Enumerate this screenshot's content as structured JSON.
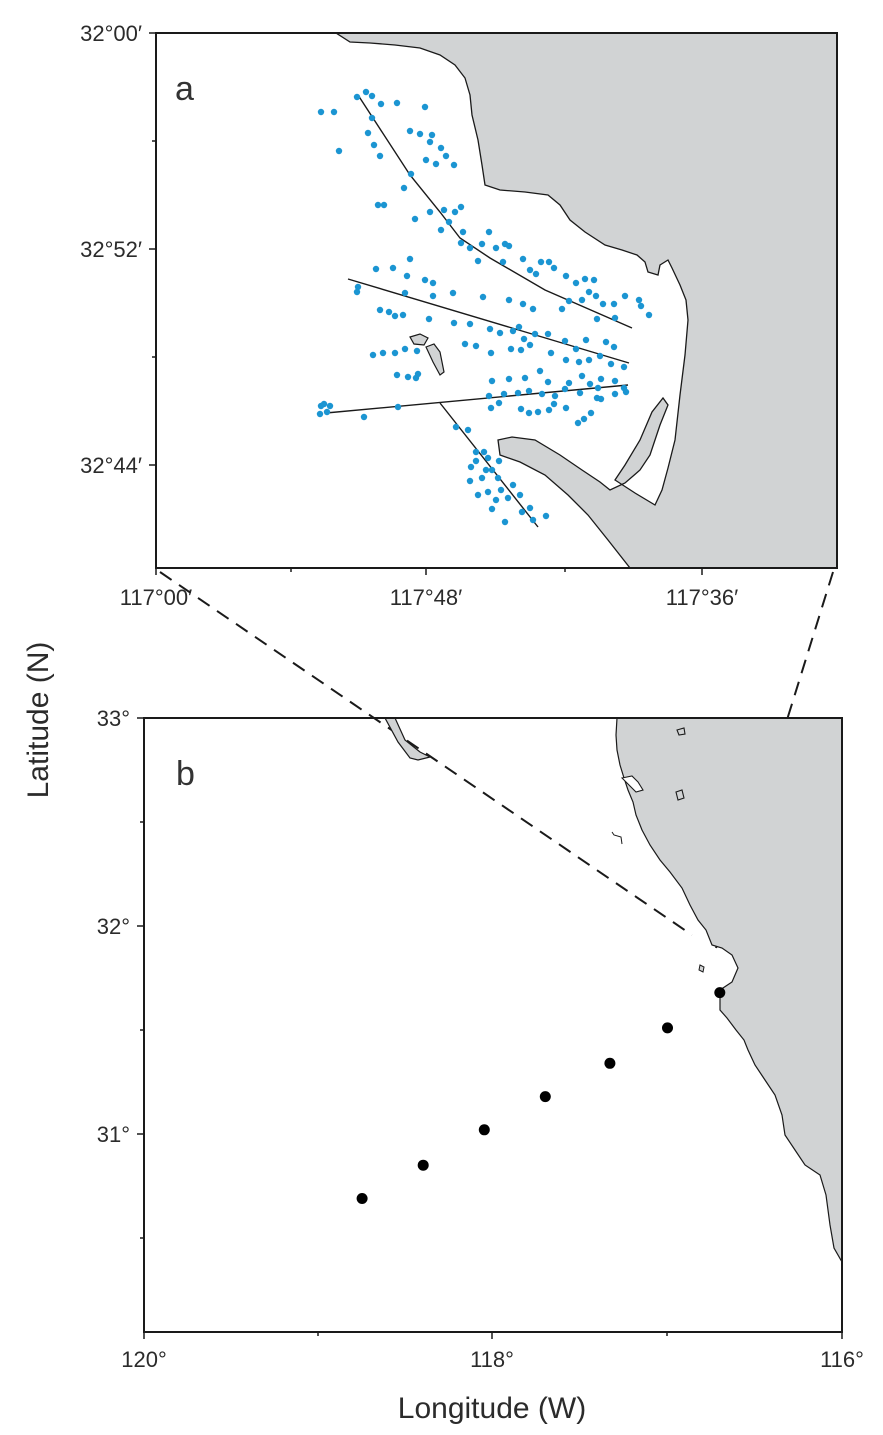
{
  "figure": {
    "ylabel": "Latitude (N)",
    "xlabel": "Longitude (W)"
  },
  "panel_a": {
    "letter": "a",
    "y_tick_labels": [
      "32°00′",
      "32°52′",
      "32°44′"
    ],
    "x_tick_labels": [
      "117°00′",
      "117°48′",
      "117°36′"
    ]
  },
  "panel_b": {
    "letter": "b",
    "y_tick_labels": [
      "33°",
      "32°",
      "31°"
    ],
    "x_tick_labels": [
      "120°",
      "118°",
      "116°"
    ]
  },
  "colors": {
    "land": "#d1d3d4",
    "sample_points": "#1b95d2",
    "station_points": "#000000",
    "frame": "#1a1a1a"
  },
  "chart_data": [
    {
      "type": "scatter",
      "panel": "a",
      "x_axis": "longitude (W)",
      "y_axis": "latitude (N)",
      "series": [
        {
          "marker": "blue dots",
          "x": [
            -117.88,
            -117.86,
            -117.84,
            -117.82,
            -117.8,
            -117.78,
            -117.76,
            -117.74,
            -117.72,
            -117.7,
            -117.68,
            -117.66,
            -117.64,
            -117.62,
            -117.86,
            -117.82,
            -117.78,
            -117.74,
            -117.7,
            -117.66
          ],
          "y": [
            32.96,
            32.93,
            32.91,
            32.89,
            32.87,
            32.85,
            32.83,
            32.82,
            32.81,
            32.8,
            32.79,
            32.8,
            32.81,
            32.82,
            32.78,
            32.76,
            32.77,
            32.78,
            32.76,
            32.77
          ]
        }
      ]
    },
    {
      "type": "scatter",
      "panel": "b",
      "x_axis": "longitude (W)",
      "y_axis": "latitude (N)",
      "series": [
        {
          "marker": "black dots",
          "x": [
            -116.7,
            -117.0,
            -117.33,
            -117.7,
            -118.05,
            -118.4,
            -118.75
          ],
          "y": [
            31.68,
            31.51,
            31.34,
            31.18,
            31.02,
            30.85,
            30.69
          ]
        }
      ]
    }
  ]
}
